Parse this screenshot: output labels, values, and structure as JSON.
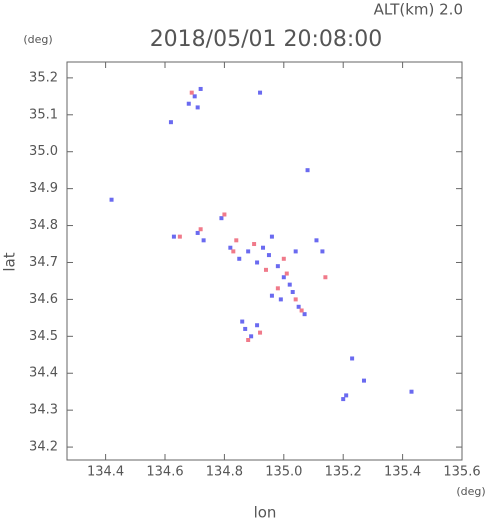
{
  "chart_data": {
    "type": "scatter",
    "title": "2018/05/01 20:08:00",
    "subtitle": "ALT(km) 2.0",
    "x_label": "lon",
    "y_label": "lat",
    "x_unit": "(deg)",
    "y_unit": "(deg)",
    "xlim": [
      134.27,
      135.6
    ],
    "ylim": [
      34.165,
      35.243
    ],
    "xticks": [
      134.4,
      134.6,
      134.8,
      {
        "value": 135,
        "label": "135.0"
      },
      135.2,
      135.4,
      135.6
    ],
    "yticks": [
      34.2,
      34.3,
      34.4,
      34.5,
      34.6,
      34.7,
      34.8,
      34.9,
      {
        "value": 35,
        "label": "35.0"
      },
      35.1,
      35.2
    ],
    "series": [
      {
        "color": "#6a6af0",
        "x": [
          134.7,
          134.68,
          134.72,
          134.71,
          134.92,
          134.62,
          134.42,
          135.08,
          134.63,
          134.71,
          134.73,
          134.79,
          134.82,
          134.85,
          134.88,
          134.91,
          134.93,
          134.95,
          134.98,
          135.0,
          135.02,
          134.96,
          134.99,
          135.03,
          135.05,
          135.07,
          134.89,
          134.87,
          134.91,
          135.23,
          135.27,
          135.21,
          135.2,
          135.43,
          135.11,
          135.13,
          134.86,
          134.96,
          135.04
        ],
        "values": [
          35.15,
          35.13,
          35.17,
          35.12,
          35.16,
          35.08,
          34.87,
          34.95,
          34.77,
          34.78,
          34.76,
          34.82,
          34.74,
          34.71,
          34.73,
          34.7,
          34.74,
          34.72,
          34.69,
          34.66,
          34.64,
          34.61,
          34.6,
          34.62,
          34.58,
          34.56,
          34.5,
          34.52,
          34.53,
          34.44,
          34.38,
          34.34,
          34.33,
          34.35,
          34.76,
          34.73,
          34.54,
          34.77,
          34.73
        ]
      },
      {
        "color": "#f07a8a",
        "x": [
          134.69,
          134.65,
          134.72,
          134.8,
          134.84,
          134.9,
          134.94,
          135.01,
          135.04,
          134.98,
          134.92,
          134.88,
          135.06,
          135.14,
          134.83,
          135.0
        ],
        "values": [
          35.16,
          34.77,
          34.79,
          34.83,
          34.76,
          34.75,
          34.68,
          34.67,
          34.6,
          34.63,
          34.51,
          34.49,
          34.57,
          34.66,
          34.73,
          34.71
        ]
      }
    ]
  }
}
